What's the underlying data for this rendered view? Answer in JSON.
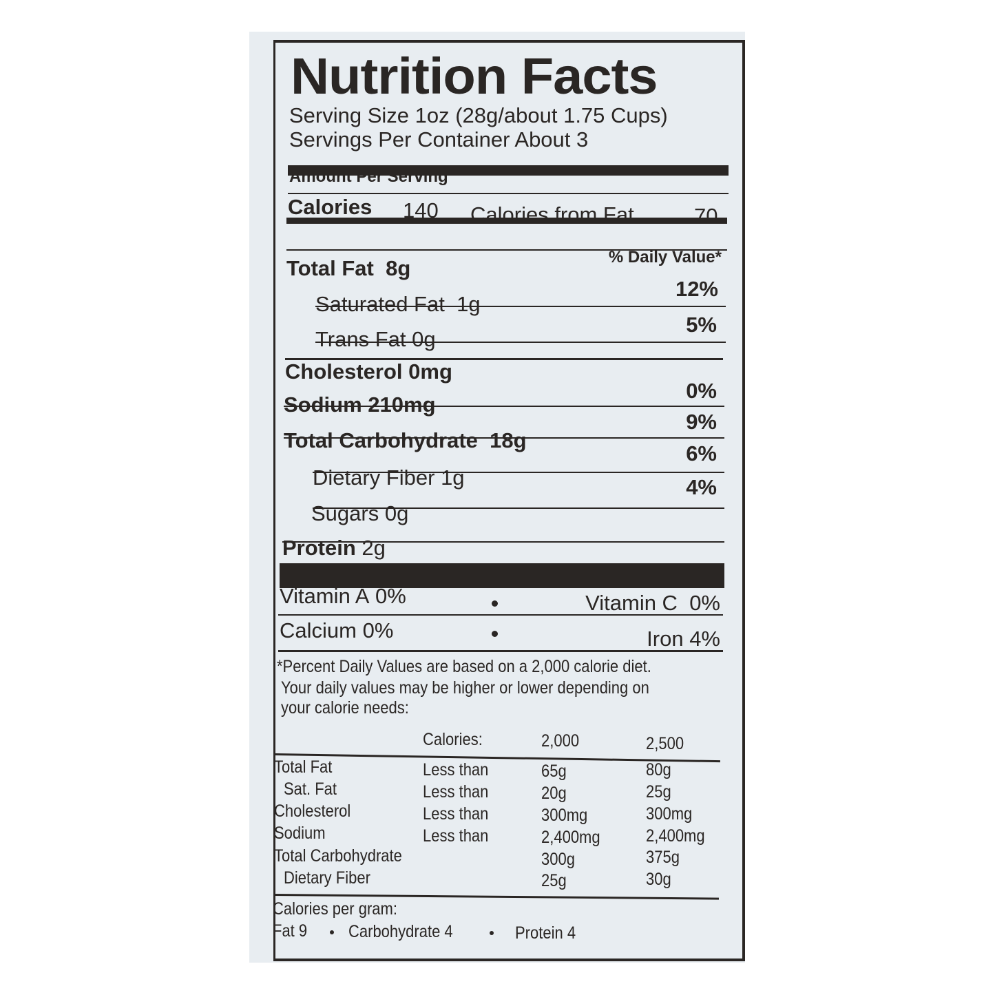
{
  "header": {
    "title": "Nutrition Facts",
    "serving_size": "Serving Size 1oz (28g/about 1.75 Cups)",
    "servings_per_container": "Servings Per Container About 3"
  },
  "amount_per_serving": "Amount Per Serving",
  "calories": {
    "label": "Calories",
    "value": "140",
    "from_fat_label": "Calories from Fat",
    "from_fat_value": "70"
  },
  "daily_value_header": "% Daily Value*",
  "nutrients": [
    {
      "label": "Total Fat",
      "amount": "8g",
      "dv": "12%"
    },
    {
      "label": "Saturated Fat",
      "amount": "1g",
      "dv": "5%"
    },
    {
      "label": "Trans Fat",
      "amount": "0g",
      "dv": ""
    },
    {
      "label": "Cholesterol",
      "amount": "0mg",
      "dv": "0%"
    },
    {
      "label": "Sodium",
      "amount": "210mg",
      "dv": "9%"
    },
    {
      "label": "Total Carbohydrate",
      "amount": "18g",
      "dv": "6%"
    },
    {
      "label": "Dietary Fiber",
      "amount": "1g",
      "dv": "4%"
    },
    {
      "label": "Sugars",
      "amount": "0g",
      "dv": ""
    },
    {
      "label": "Protein",
      "amount": "2g",
      "dv": ""
    }
  ],
  "vitamins": [
    {
      "label": "Vitamin A",
      "value": "0%"
    },
    {
      "label": "Vitamin C",
      "value": "0%"
    },
    {
      "label": "Calcium",
      "value": "0%"
    },
    {
      "label": "Iron",
      "value": "4%"
    }
  ],
  "footnote": [
    "*Percent Daily Values are based on a 2,000 calorie diet.",
    "Your daily values may be higher or lower depending on",
    "your calorie needs:"
  ],
  "reference_table": {
    "headers": [
      "Calories:",
      "2,000",
      "2,500"
    ],
    "rows": [
      [
        "Total Fat",
        "Less than",
        "65g",
        "80g"
      ],
      [
        "Sat. Fat",
        "Less than",
        "20g",
        "25g"
      ],
      [
        "Cholesterol",
        "Less than",
        "300mg",
        "300mg"
      ],
      [
        "Sodium",
        "Less than",
        "2,400mg",
        "2,400mg"
      ],
      [
        "Total Carbohydrate",
        "",
        "300g",
        "375g"
      ],
      [
        "Dietary Fiber",
        "",
        "25g",
        "30g"
      ]
    ]
  },
  "calories_per_gram": {
    "label": "Calories per gram:",
    "items": [
      "Fat 9",
      "Carbohydrate 4",
      "Protein 4"
    ]
  },
  "colors": {
    "ink": "#2a2624",
    "panel": "#e8edf1"
  }
}
